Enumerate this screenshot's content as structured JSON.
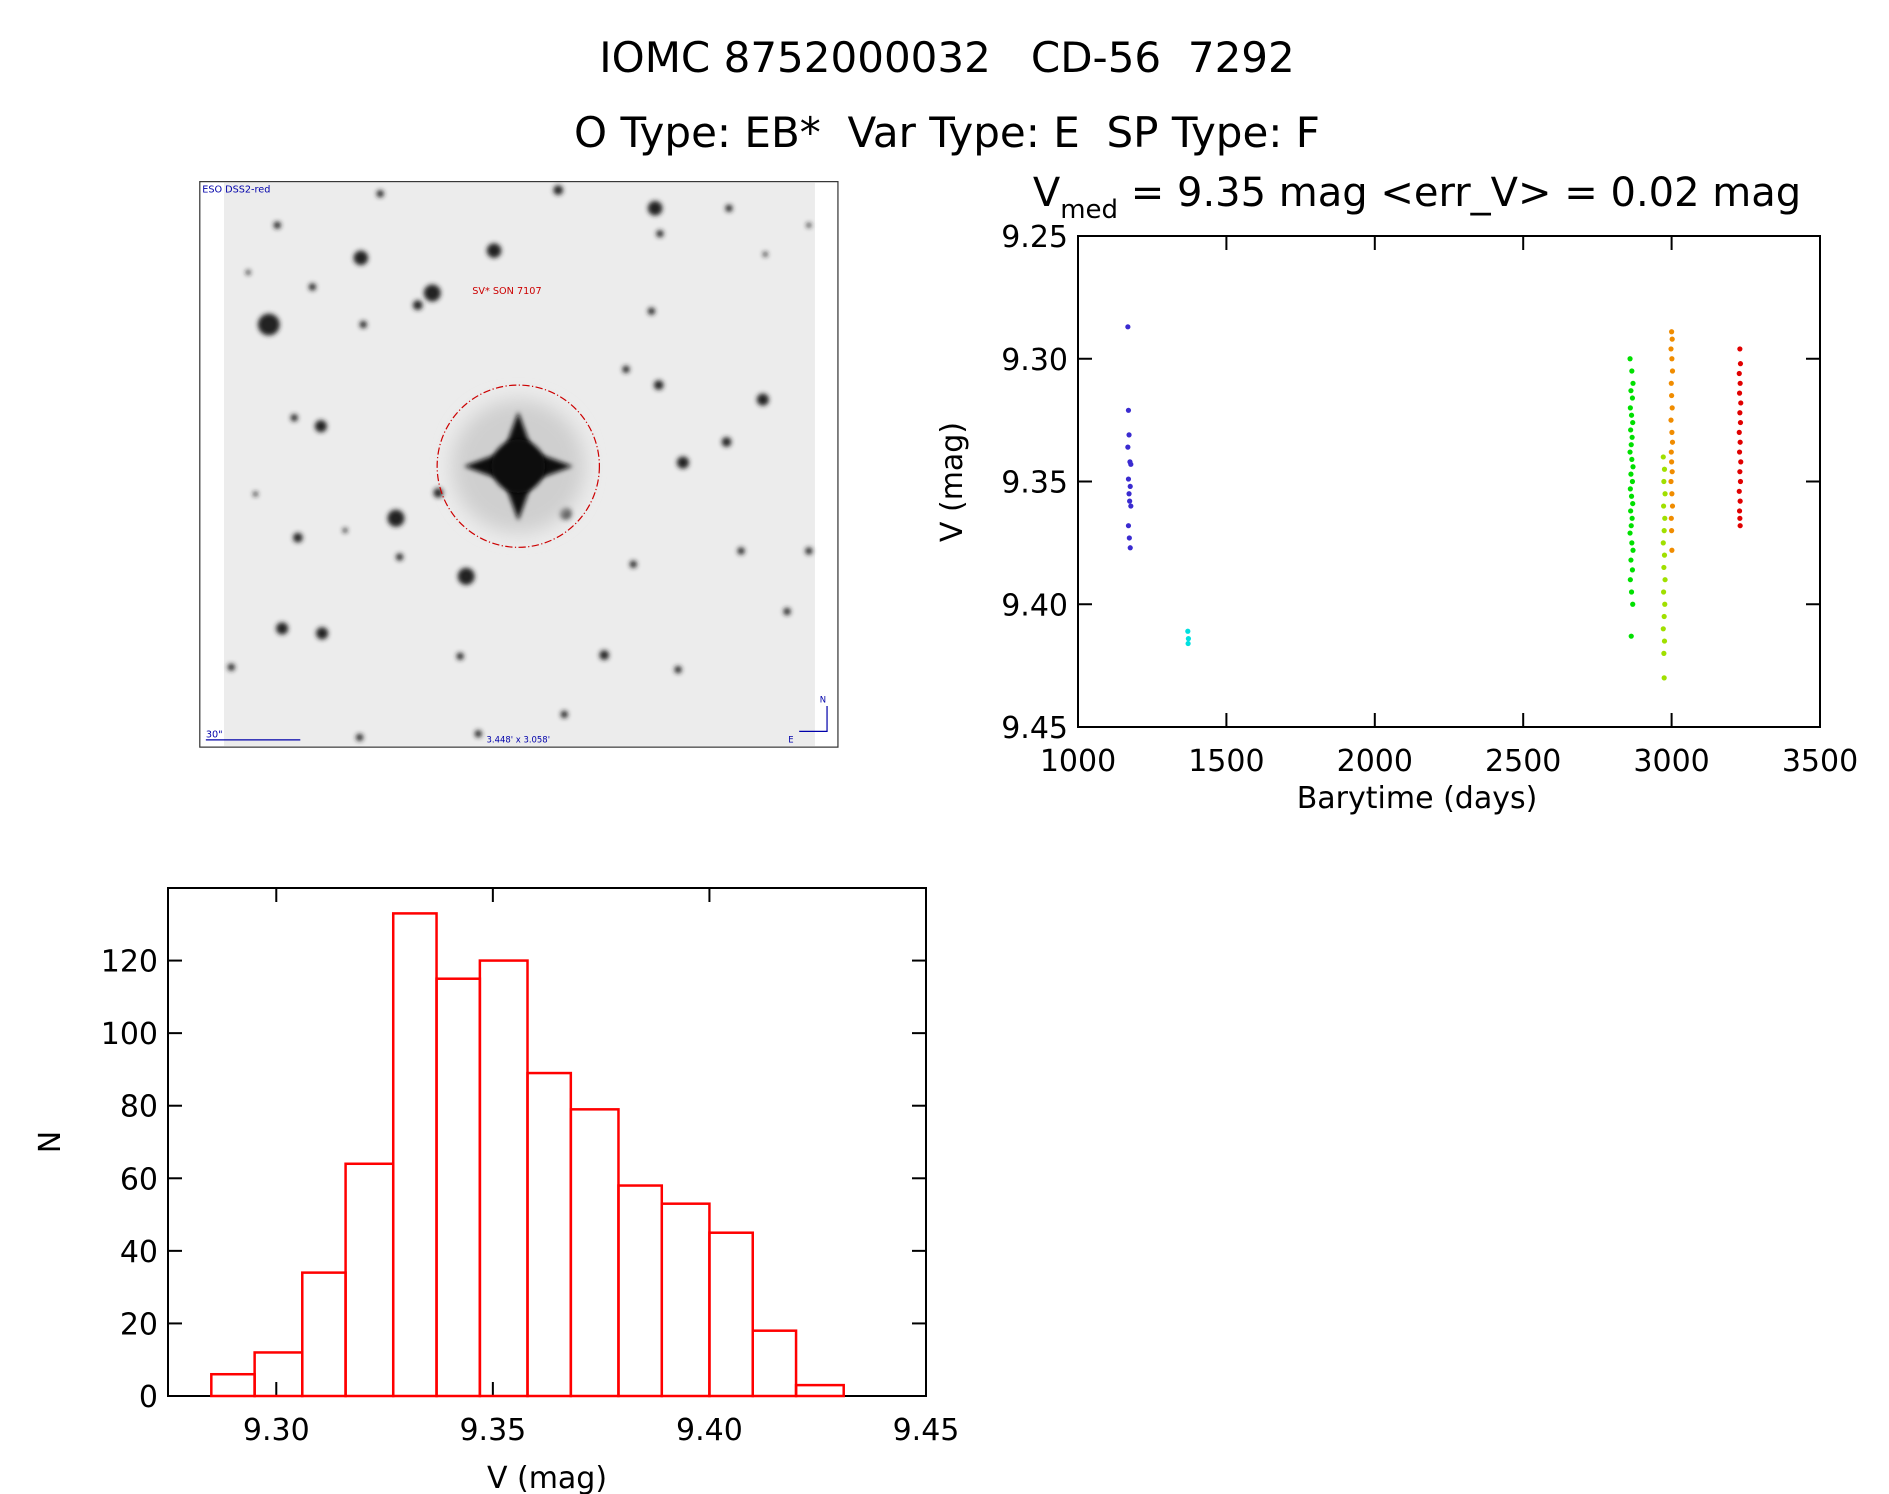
{
  "title": "IOMC 8752000032   CD-56  7292",
  "subtitle": "O Type: EB*  Var Type: E  SP Type: F",
  "image": {
    "survey": "ESO DSS2-red",
    "object": "SV* SON 7107",
    "scale": "30\"",
    "field": "3.448' x 3.058'",
    "north": "N",
    "east": "E"
  },
  "chart_data": [
    {
      "type": "scatter",
      "title": {
        "symbol": "V",
        "subscript": "med",
        "text": " = 9.35 mag <err_V> = 0.02 mag"
      },
      "x_label": "Barytime (days)",
      "y_label": "V (mag)",
      "xlim": [
        1000,
        3500
      ],
      "xticks": [
        1000,
        1500,
        2000,
        2500,
        3000,
        3500
      ],
      "ylim": [
        9.45,
        9.25
      ],
      "yticks": [
        {
          "value": 9.25,
          "label": "9.25"
        },
        {
          "value": 9.3,
          "label": "9.30"
        },
        {
          "value": 9.35,
          "label": "9.35"
        },
        {
          "value": 9.4,
          "label": "9.40"
        },
        {
          "value": 9.45,
          "label": "9.45"
        }
      ],
      "series": [
        {
          "color": "#3a2bd0",
          "x": [
            1168,
            1170,
            1172,
            1168,
            1175,
            1178,
            1170,
            1176,
            1172,
            1174,
            1178,
            1170,
            1173,
            1176
          ],
          "values": [
            9.287,
            9.321,
            9.331,
            9.336,
            9.342,
            9.343,
            9.349,
            9.352,
            9.355,
            9.358,
            9.36,
            9.368,
            9.373,
            9.377
          ]
        },
        {
          "color": "#00e0e0",
          "x": [
            1370,
            1372,
            1371
          ],
          "values": [
            9.411,
            9.414,
            9.416
          ]
        },
        {
          "color": "#00e000",
          "x": [
            2860,
            2866,
            2870,
            2863,
            2868,
            2861,
            2865,
            2869,
            2862,
            2867,
            2864,
            2860,
            2866,
            2870,
            2863,
            2868,
            2861,
            2865,
            2869,
            2862,
            2867,
            2864,
            2860,
            2866,
            2870,
            2863,
            2868,
            2861,
            2865,
            2869,
            2864
          ],
          "values": [
            9.3,
            9.305,
            9.31,
            9.313,
            9.316,
            9.32,
            9.323,
            9.326,
            9.329,
            9.332,
            9.335,
            9.338,
            9.341,
            9.344,
            9.347,
            9.35,
            9.353,
            9.356,
            9.359,
            9.362,
            9.365,
            9.368,
            9.371,
            9.375,
            9.378,
            9.382,
            9.386,
            9.39,
            9.395,
            9.4,
            9.413
          ]
        },
        {
          "color": "#a0e000",
          "x": [
            2972,
            2976,
            2974,
            2978,
            2973,
            2977,
            2975,
            2972,
            2976,
            2974,
            2978,
            2973,
            2977,
            2975,
            2972,
            2976,
            2974,
            2975
          ],
          "values": [
            9.34,
            9.345,
            9.35,
            9.355,
            9.36,
            9.365,
            9.37,
            9.375,
            9.38,
            9.385,
            9.39,
            9.395,
            9.4,
            9.405,
            9.41,
            9.415,
            9.42,
            9.43
          ]
        },
        {
          "color": "#f08c00",
          "x": [
            3000,
            3002,
            2998,
            3001,
            3003,
            2999,
            3000,
            3002,
            2998,
            3001,
            3003,
            2999,
            3000,
            3002,
            2998,
            3001,
            3003,
            2999,
            3000,
            3001
          ],
          "values": [
            9.289,
            9.292,
            9.296,
            9.3,
            9.305,
            9.31,
            9.315,
            9.32,
            9.325,
            9.33,
            9.334,
            9.338,
            9.342,
            9.346,
            9.35,
            9.355,
            9.36,
            9.365,
            9.37,
            9.378
          ]
        },
        {
          "color": "#e00000",
          "x": [
            3230,
            3232,
            3228,
            3231,
            3229,
            3233,
            3230,
            3232,
            3228,
            3231,
            3229,
            3233,
            3230,
            3232,
            3228,
            3231,
            3229,
            3230,
            3231
          ],
          "values": [
            9.296,
            9.302,
            9.306,
            9.31,
            9.314,
            9.318,
            9.322,
            9.326,
            9.33,
            9.334,
            9.338,
            9.342,
            9.346,
            9.35,
            9.354,
            9.358,
            9.362,
            9.365,
            9.368
          ]
        }
      ]
    },
    {
      "type": "histogram",
      "x_label": "V (mag)",
      "y_label": "N",
      "color": "#ff0000",
      "xlim": [
        9.275,
        9.45
      ],
      "xticks": [
        {
          "value": 9.3,
          "label": "9.30"
        },
        {
          "value": 9.35,
          "label": "9.35"
        },
        {
          "value": 9.4,
          "label": "9.40"
        },
        {
          "value": 9.45,
          "label": "9.45"
        }
      ],
      "ylim": [
        0,
        140
      ],
      "yticks": [
        0,
        20,
        40,
        60,
        80,
        100,
        120
      ],
      "bins": [
        9.285,
        9.295,
        9.306,
        9.316,
        9.327,
        9.337,
        9.347,
        9.358,
        9.368,
        9.379,
        9.389,
        9.4,
        9.41,
        9.42,
        9.431
      ],
      "values": [
        6,
        12,
        34,
        64,
        133,
        115,
        120,
        89,
        79,
        58,
        53,
        45,
        18,
        3
      ]
    }
  ]
}
